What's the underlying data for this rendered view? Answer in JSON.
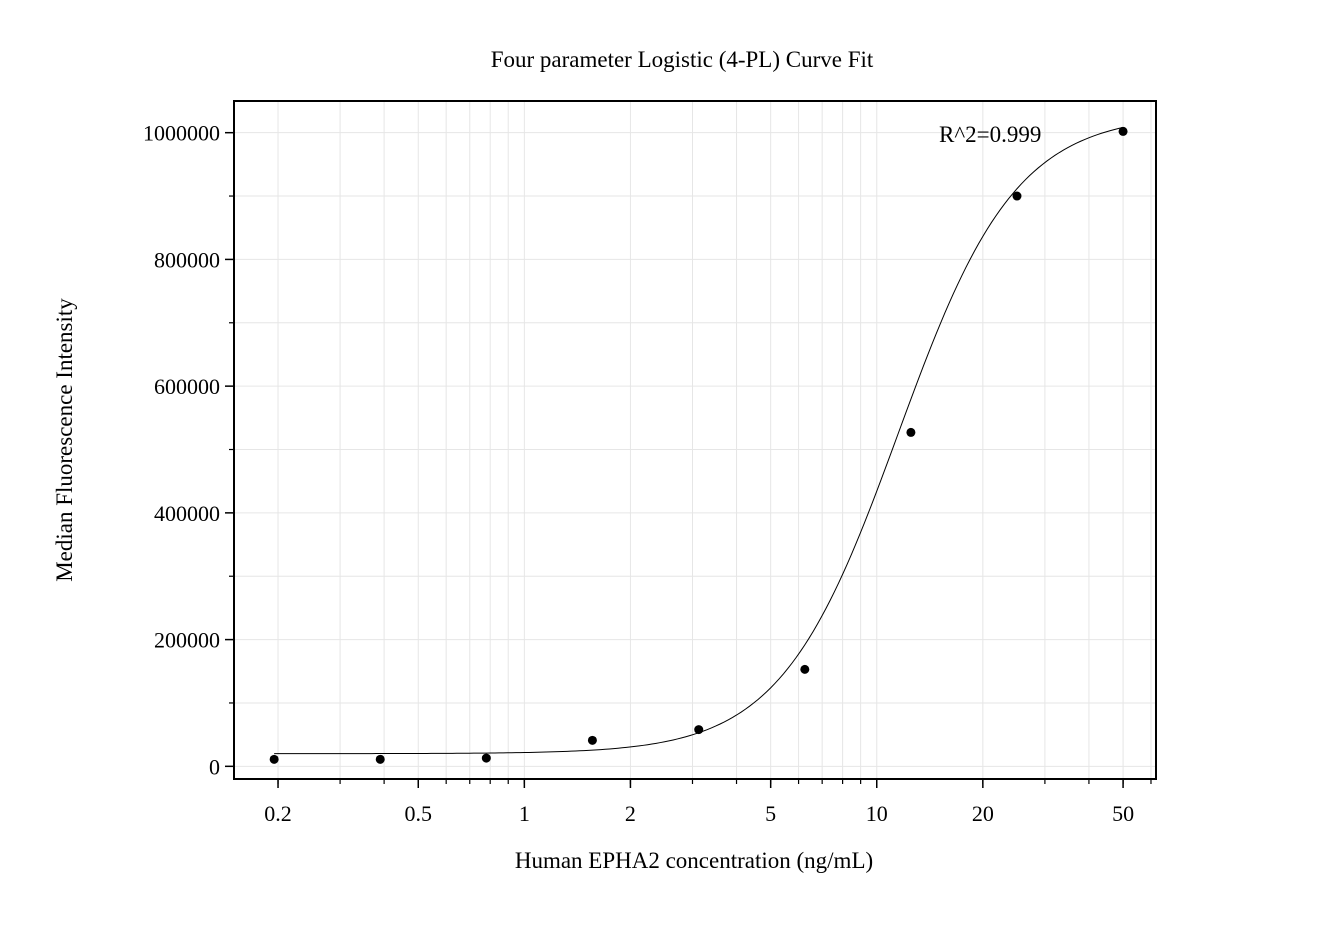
{
  "chart_data": {
    "type": "scatter",
    "title": "Four parameter Logistic (4-PL) Curve Fit",
    "xlabel": "Human EPHA2 concentration (ng/mL)",
    "ylabel": "Median Fluorescence Intensity",
    "x_scale": "log",
    "xlim": [
      0.15,
      62
    ],
    "ylim": [
      -20000,
      1050000
    ],
    "x_ticks": [
      0.2,
      0.5,
      1,
      2,
      5,
      10,
      20,
      50
    ],
    "x_tick_labels": [
      "0.2",
      "0.5",
      "1",
      "2",
      "5",
      "10",
      "20",
      "50"
    ],
    "y_ticks": [
      0,
      200000,
      400000,
      600000,
      800000,
      1000000
    ],
    "y_tick_labels": [
      "0",
      "200000",
      "400000",
      "600000",
      "800000",
      "1000000"
    ],
    "grid": true,
    "series": [
      {
        "x": [
          0.195,
          0.39,
          0.78,
          1.56,
          3.125,
          6.25,
          12.5,
          25,
          50
        ],
        "y": [
          11000,
          11000,
          13000,
          41000,
          58000,
          153000,
          527000,
          900000,
          1002000
        ]
      }
    ],
    "fit": {
      "model": "4-PL",
      "bottom": 20000,
      "top": 1030000,
      "ec50": 11.5,
      "hill": 2.6
    },
    "annotation": "R^2=0.999",
    "colors": {
      "points": "#000000",
      "curve": "#000000",
      "grid": "#e6e6e6",
      "axes": "#000000"
    }
  }
}
